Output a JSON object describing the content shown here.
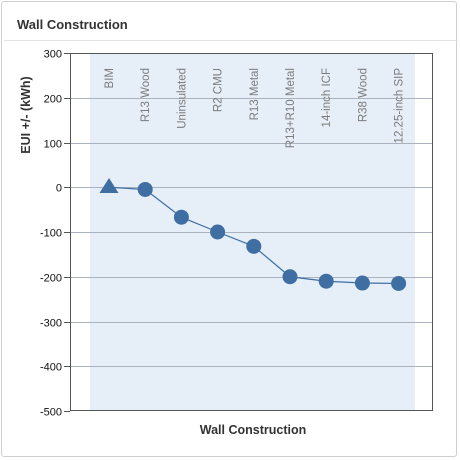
{
  "header": {
    "title": "Wall Construction"
  },
  "chart_data": {
    "type": "line",
    "title": "Wall Construction",
    "xlabel": "Wall Construction",
    "ylabel": "EUI +/- (kWh)",
    "ylim": [
      -500,
      300
    ],
    "yticks": [
      300,
      200,
      100,
      0,
      -100,
      -200,
      -300,
      -400,
      -500
    ],
    "grid": true,
    "categories": [
      "BIM",
      "R13 Wood",
      "Uninsulated",
      "R2 CMU",
      "R13 Metal",
      "R13+R10 Metal",
      "14-inch ICF",
      "R38 Wood",
      "12.25-inch SIP"
    ],
    "series": [
      {
        "values": [
          0,
          -5,
          -67,
          -100,
          -132,
          -200,
          -210,
          -214,
          -215
        ]
      }
    ],
    "markers": [
      "triangle",
      "circle",
      "circle",
      "circle",
      "circle",
      "circle",
      "circle",
      "circle",
      "circle"
    ],
    "colors": {
      "series": "#3f6ea3",
      "band": "#e6eef8",
      "grid": "#aab2bd"
    }
  }
}
